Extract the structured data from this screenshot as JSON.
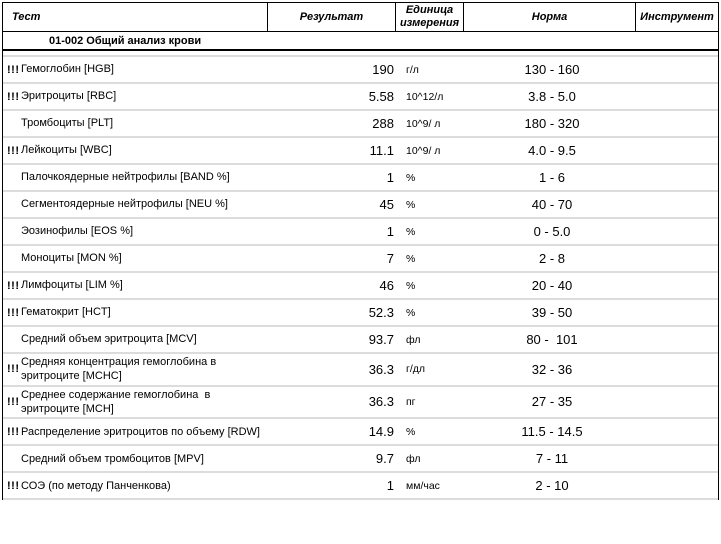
{
  "header": {
    "columns": [
      "Тест",
      "Результат",
      "Единица\nизмерения",
      "Норма",
      "Инструмент"
    ]
  },
  "section": {
    "title": "01-002 Общий анализ крови"
  },
  "rows": [
    {
      "flag": "!!!",
      "test": "Гемоглобин [HGB]",
      "result": "190",
      "unit": "г/л",
      "norm": "130 - 160",
      "instrument": ""
    },
    {
      "flag": "!!!",
      "test": "Эритроциты [RBC]",
      "result": "5.58",
      "unit": "10^12/л",
      "norm": "3.8 - 5.0",
      "instrument": ""
    },
    {
      "flag": "",
      "test": "Тромбоциты [PLT]",
      "result": "288",
      "unit": "10^9/ л",
      "norm": "180 - 320",
      "instrument": ""
    },
    {
      "flag": "!!!",
      "test": "Лейкоциты [WBC]",
      "result": "11.1",
      "unit": "10^9/ л",
      "norm": "4.0 - 9.5",
      "instrument": ""
    },
    {
      "flag": "",
      "test": "Палочкоядерные нейтрофилы [BAND %]",
      "result": "1",
      "unit": "%",
      "norm": "1 - 6",
      "instrument": ""
    },
    {
      "flag": "",
      "test": "Сегментоядерные нейтрофилы [NEU %]",
      "result": "45",
      "unit": "%",
      "norm": "40 - 70",
      "instrument": ""
    },
    {
      "flag": "",
      "test": "Эозинофилы [EOS %]",
      "result": "1",
      "unit": "%",
      "norm": "0 - 5.0",
      "instrument": ""
    },
    {
      "flag": "",
      "test": "Моноциты [MON %]",
      "result": "7",
      "unit": "%",
      "norm": "2 - 8",
      "instrument": ""
    },
    {
      "flag": "!!!",
      "test": "Лимфоциты [LIM %]",
      "result": "46",
      "unit": "%",
      "norm": "20 - 40",
      "instrument": ""
    },
    {
      "flag": "!!!",
      "test": "Гематокрит [HCT]",
      "result": "52.3",
      "unit": "%",
      "norm": "39 - 50",
      "instrument": ""
    },
    {
      "flag": "",
      "test": "Средний объем эритроцита [MCV]",
      "result": "93.7",
      "unit": "фл",
      "norm": "80 -  101",
      "instrument": ""
    },
    {
      "flag": "!!!",
      "test": "Средняя концентрация гемоглобина в\nэритроците [MCHC]",
      "result": "36.3",
      "unit": "г/дл",
      "norm": "32 - 36",
      "instrument": ""
    },
    {
      "flag": "!!!",
      "test": "Среднее содержание гемоглобина  в\nэритроците [MCH]",
      "result": "36.3",
      "unit": "пг",
      "norm": "27 - 35",
      "instrument": ""
    },
    {
      "flag": "!!!",
      "test": "Распределение эритроцитов по объему [RDW]",
      "result": "14.9",
      "unit": "%",
      "norm": "11.5 - 14.5",
      "instrument": ""
    },
    {
      "flag": "",
      "test": "Средний объем тромбоцитов [MPV]",
      "result": "9.7",
      "unit": "фл",
      "norm": "7 - 11",
      "instrument": ""
    },
    {
      "flag": "!!!",
      "test": "СОЭ (по методу Панченкова)",
      "result": "1",
      "unit": "мм/час",
      "norm": "2 - 10",
      "instrument": ""
    }
  ],
  "colors": {
    "border": "#000000",
    "row_separator": "#dcdcdc",
    "text": "#000000",
    "background": "#ffffff"
  }
}
